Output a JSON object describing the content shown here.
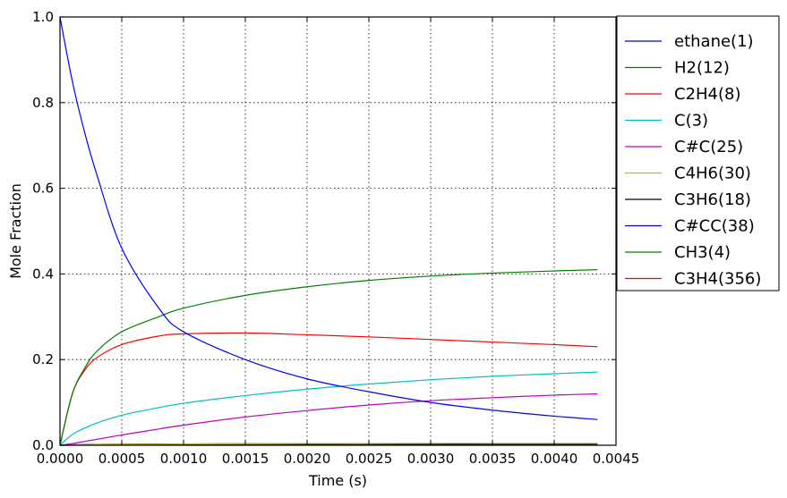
{
  "chart_data": {
    "type": "line",
    "xlabel": "Time  (s)",
    "ylabel": "Mole Fraction",
    "xlim": [
      0,
      0.0045
    ],
    "ylim": [
      0,
      1.0
    ],
    "x_ticks": [
      "0.0000",
      "0.0005",
      "0.0010",
      "0.0015",
      "0.0020",
      "0.0025",
      "0.0030",
      "0.0035",
      "0.0040",
      "0.0045"
    ],
    "y_ticks": [
      "0.0",
      "0.2",
      "0.4",
      "0.6",
      "0.8",
      "1.0"
    ],
    "grid": true,
    "legend_position": "outside-right",
    "x": [
      0,
      0.0001,
      0.0002,
      0.0003,
      0.0005,
      0.0008,
      0.001,
      0.0015,
      0.002,
      0.0025,
      0.003,
      0.0035,
      0.004,
      0.00435
    ],
    "series": [
      {
        "name": "ethane(1)",
        "color": "#0000ff",
        "values": [
          1.0,
          0.85,
          0.73,
          0.63,
          0.46,
          0.32,
          0.265,
          0.2,
          0.155,
          0.125,
          0.1,
          0.082,
          0.068,
          0.06
        ]
      },
      {
        "name": "H2(12)",
        "color": "#008000",
        "values": [
          0,
          0.12,
          0.18,
          0.22,
          0.265,
          0.3,
          0.32,
          0.35,
          0.37,
          0.385,
          0.395,
          0.402,
          0.407,
          0.41
        ]
      },
      {
        "name": "C2H4(8)",
        "color": "#ff0000",
        "values": [
          0,
          0.12,
          0.175,
          0.205,
          0.235,
          0.255,
          0.26,
          0.262,
          0.258,
          0.253,
          0.247,
          0.241,
          0.235,
          0.23
        ]
      },
      {
        "name": "C(3)",
        "color": "#00bfbf",
        "values": [
          0,
          0.025,
          0.04,
          0.052,
          0.07,
          0.088,
          0.098,
          0.116,
          0.131,
          0.143,
          0.153,
          0.161,
          0.167,
          0.171
        ]
      },
      {
        "name": "C#C(25)",
        "color": "#bf00bf",
        "values": [
          0,
          0.004,
          0.009,
          0.014,
          0.024,
          0.038,
          0.047,
          0.066,
          0.081,
          0.094,
          0.104,
          0.111,
          0.117,
          0.12
        ]
      },
      {
        "name": "C4H6(30)",
        "color": "#bfbf00",
        "values": [
          0,
          0.0005,
          0.001,
          0.0015,
          0.002,
          0.0025,
          0.003,
          0.0035,
          0.004,
          0.004,
          0.0045,
          0.0045,
          0.0045,
          0.0045
        ]
      },
      {
        "name": "C3H6(18)",
        "color": "#000000",
        "values": [
          0,
          0.001,
          0.0015,
          0.002,
          0.0025,
          0.003,
          0.003,
          0.0035,
          0.0035,
          0.0035,
          0.0035,
          0.0035,
          0.0035,
          0.0035
        ]
      },
      {
        "name": "C#CC(38)",
        "color": "#0000ff",
        "values": [
          0,
          0.0002,
          0.0005,
          0.0008,
          0.001,
          0.0012,
          0.0014,
          0.0016,
          0.0018,
          0.002,
          0.002,
          0.002,
          0.002,
          0.002
        ]
      },
      {
        "name": "CH3(4)",
        "color": "#008000",
        "values": [
          0,
          0.0005,
          0.0005,
          0.0005,
          0.0005,
          0.0005,
          0.0005,
          0.0005,
          0.0005,
          0.0005,
          0.0005,
          0.0005,
          0.0005,
          0.0005
        ]
      },
      {
        "name": "C3H4(356)",
        "color": "#ff0000",
        "values": [
          0,
          0.0001,
          0.0002,
          0.0003,
          0.0004,
          0.0005,
          0.0006,
          0.0008,
          0.001,
          0.0011,
          0.0012,
          0.0013,
          0.0014,
          0.0015
        ]
      }
    ]
  }
}
